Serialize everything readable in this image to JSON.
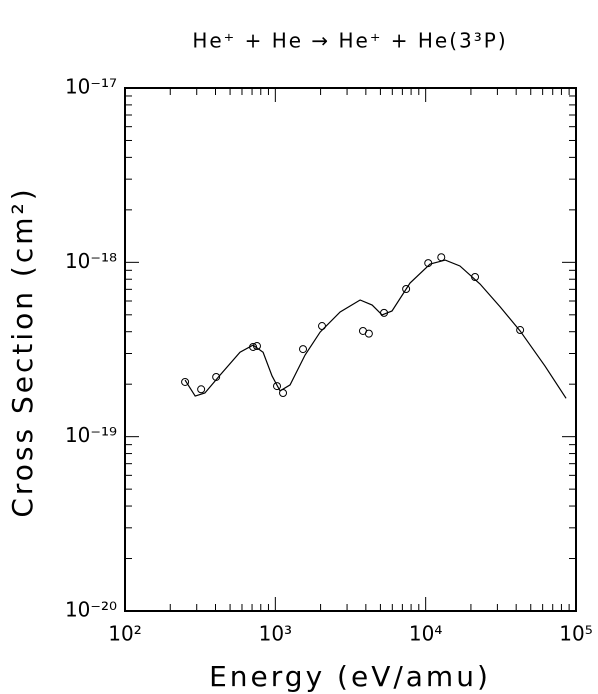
{
  "chart_data": {
    "type": "scatter",
    "title": "He⁺ + He → He⁺ + He(3³P)",
    "x_label": "Energy (eV/amu)",
    "y_label": "Cross Section (cm²)",
    "xlog": true,
    "ylog": true,
    "xlim": [
      100,
      100000
    ],
    "ylim": [
      1e-20,
      1e-17
    ],
    "xticks": [
      {
        "value": 100,
        "label": "10²"
      },
      {
        "value": 1000,
        "label": "10³"
      },
      {
        "value": 10000,
        "label": "10⁴"
      },
      {
        "value": 100000,
        "label": "10⁵"
      }
    ],
    "yticks": [
      {
        "value": 1e-20,
        "label": "10⁻²⁰"
      },
      {
        "value": 1e-19,
        "label": "10⁻¹⁹"
      },
      {
        "value": 1e-18,
        "label": "10⁻¹⁸"
      },
      {
        "value": 1e-17,
        "label": "10⁻¹⁷"
      }
    ],
    "series": [
      {
        "type": "scatter",
        "color": "#000000",
        "x": [
          251,
          321,
          404,
          711,
          755,
          1026,
          1125,
          1528,
          2044,
          3828,
          4190,
          5286,
          7413,
          10400,
          12700,
          21300,
          42500
        ],
        "values": [
          2.06e-19,
          1.87e-19,
          2.2e-19,
          3.27e-19,
          3.31e-19,
          1.95e-19,
          1.78e-19,
          3.18e-19,
          4.31e-19,
          4.04e-19,
          3.9e-19,
          5.13e-19,
          7.03e-19,
          9.9e-19,
          1.07e-18,
          8.24e-19,
          4.09e-19
        ]
      },
      {
        "type": "line",
        "color": "#000000",
        "x": [
          251,
          293,
          340,
          428,
          582,
          711,
          829,
          951,
          1075,
          1253,
          1577,
          1986,
          2698,
          3664,
          4406,
          5129,
          5973,
          7870,
          10700,
          13500,
          16900,
          23000,
          31300,
          42500,
          62200,
          85900
        ],
        "values": [
          2.11e-19,
          1.71e-19,
          1.78e-19,
          2.25e-19,
          3.05e-19,
          3.35e-19,
          3.05e-19,
          2.23e-19,
          1.83e-19,
          1.98e-19,
          2.94e-19,
          3.98e-19,
          5.19e-19,
          6.08e-19,
          5.69e-19,
          4.99e-19,
          5.26e-19,
          7.61e-19,
          9.77e-19,
          1.03e-18,
          9.53e-19,
          7.51e-19,
          5.55e-19,
          4.04e-19,
          2.54e-19,
          1.66e-19
        ]
      }
    ]
  }
}
